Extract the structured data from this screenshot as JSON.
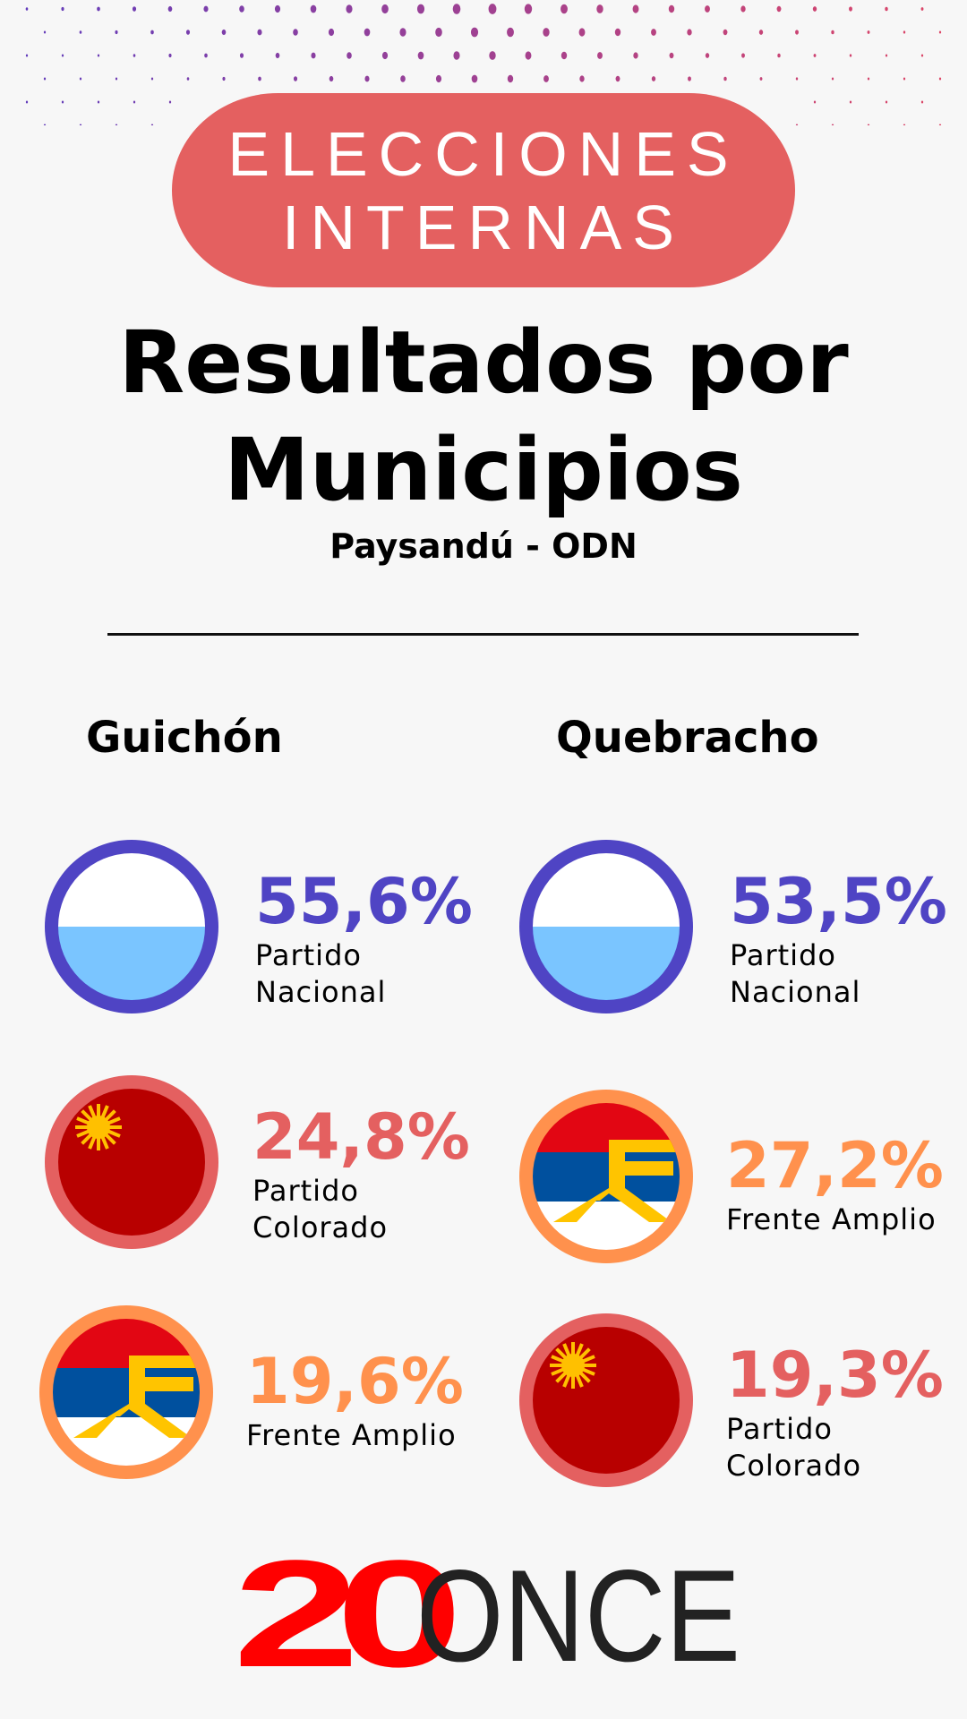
{
  "badge": {
    "line1": "ELECCIONES",
    "line2": "INTERNAS",
    "color": "#e46060"
  },
  "title": {
    "line1": "Resultados por",
    "line2": "Municipios"
  },
  "subtitle": "Paysandú - ODN",
  "columns": [
    {
      "name": "Guichón",
      "results": [
        {
          "percent": "55,6%",
          "party_line1": "Partido",
          "party_line2": "Nacional",
          "flag": "partido-nacional-flag",
          "color": "#4f44c4"
        },
        {
          "percent": "24,8%",
          "party_line1": "Partido",
          "party_line2": "Colorado",
          "flag": "partido-colorado-flag",
          "color": "#e46060"
        },
        {
          "percent": "19,6%",
          "party_line1": "Frente Amplio",
          "party_line2": "",
          "flag": "frente-amplio-flag",
          "color": "#ff914d"
        }
      ]
    },
    {
      "name": "Quebracho",
      "results": [
        {
          "percent": "53,5%",
          "party_line1": "Partido",
          "party_line2": "Nacional",
          "flag": "partido-nacional-flag",
          "color": "#4f44c4"
        },
        {
          "percent": "27,2%",
          "party_line1": "Frente Amplio",
          "party_line2": "",
          "flag": "frente-amplio-flag",
          "color": "#ff914d"
        },
        {
          "percent": "19,3%",
          "party_line1": "Partido",
          "party_line2": "Colorado",
          "flag": "partido-colorado-flag",
          "color": "#e46060"
        }
      ]
    }
  ],
  "logo": {
    "part1": "20",
    "part2": "ONCE",
    "color1": "#ff0000",
    "color2": "#222222"
  }
}
